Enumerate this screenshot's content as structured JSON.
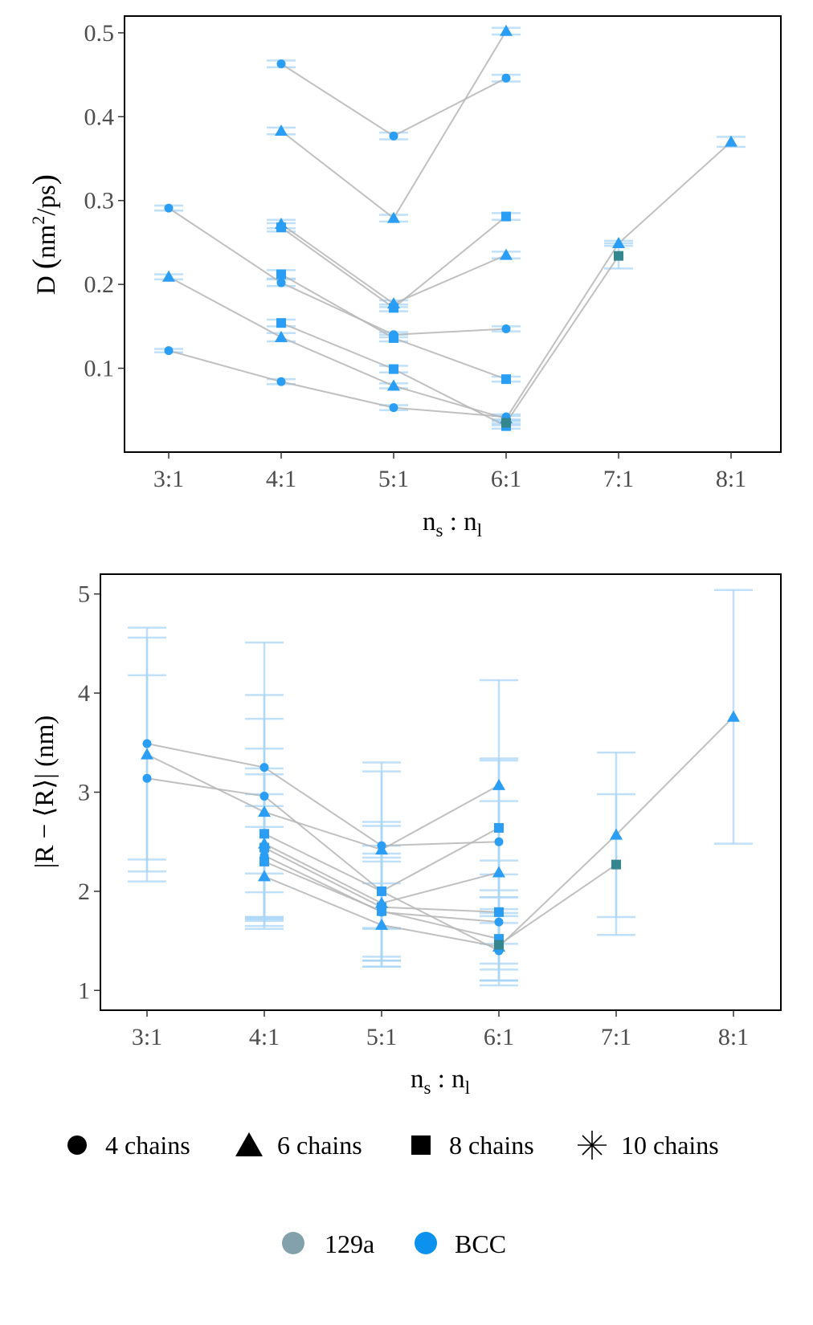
{
  "chart_data": [
    {
      "type": "line",
      "panel": "top",
      "xlabel_main": "n",
      "xlabel_sub1": "s",
      "xlabel_mid": " : n",
      "xlabel_sub2": "l",
      "ylabel_main": "D",
      "ylabel_paren_open": "(",
      "ylabel_unit_a": "nm",
      "ylabel_sup": "2",
      "ylabel_unit_b": "/ps",
      "ylabel_paren_close": ")",
      "categories": [
        "3:1",
        "4:1",
        "5:1",
        "6:1",
        "7:1",
        "8:1"
      ],
      "ylim": [
        0.0,
        0.52
      ],
      "yticks": [
        0.1,
        0.2,
        0.3,
        0.4,
        0.5
      ],
      "ytick_labels": [
        "0.1",
        "0.2",
        "0.3",
        "0.4",
        "0.5"
      ],
      "grid": false,
      "series": [
        {
          "name": "4 chains BCC a",
          "shape": "circle",
          "group": "BCC",
          "x": [
            "4:1",
            "5:1",
            "6:1"
          ],
          "values": [
            0.463,
            0.377,
            0.446
          ],
          "err": [
            0.004,
            0.004,
            0.004
          ]
        },
        {
          "name": "6 chains BCC a",
          "shape": "triangle",
          "group": "BCC",
          "x": [
            "4:1",
            "5:1",
            "6:1"
          ],
          "values": [
            0.383,
            0.279,
            0.502
          ],
          "err": [
            0.004,
            0.004,
            0.004
          ]
        },
        {
          "name": "8 chains BCC a",
          "shape": "square",
          "group": "BCC",
          "x": [
            "4:1",
            "5:1",
            "6:1"
          ],
          "values": [
            0.268,
            0.172,
            0.281
          ],
          "err": [
            0.005,
            0.004,
            0.004
          ]
        },
        {
          "name": "6 chains BCC b",
          "shape": "triangle",
          "group": "BCC",
          "x": [
            "4:1",
            "5:1",
            "6:1"
          ],
          "values": [
            0.272,
            0.177,
            0.235
          ],
          "err": [
            0.005,
            0.004,
            0.004
          ]
        },
        {
          "name": "4 chains BCC b",
          "shape": "circle",
          "group": "BCC",
          "x": [
            "3:1",
            "4:1",
            "5:1",
            "6:1"
          ],
          "values": [
            0.291,
            0.202,
            0.14,
            0.147
          ],
          "err": [
            0.003,
            0.004,
            0.003,
            0.003
          ]
        },
        {
          "name": "8 chains BCC b",
          "shape": "square",
          "group": "BCC",
          "x": [
            "4:1",
            "5:1",
            "6:1"
          ],
          "values": [
            0.212,
            0.136,
            0.087
          ],
          "err": [
            0.005,
            0.004,
            0.003
          ]
        },
        {
          "name": "6 chains BCC c",
          "shape": "triangle",
          "group": "BCC",
          "x": [
            "3:1",
            "4:1",
            "5:1",
            "6:1",
            "7:1",
            "8:1"
          ],
          "values": [
            0.209,
            0.137,
            0.079,
            0.04,
            0.249,
            0.37
          ],
          "err": [
            0.003,
            0.005,
            0.003,
            0.003,
            0.003,
            0.006
          ]
        },
        {
          "name": "8 chains BCC c",
          "shape": "square",
          "group": "BCC",
          "x": [
            "4:1",
            "5:1",
            "6:1"
          ],
          "values": [
            0.154,
            0.099,
            0.031
          ],
          "err": [
            0.004,
            0.004,
            0.003
          ]
        },
        {
          "name": "4 chains BCC c",
          "shape": "circle",
          "group": "BCC",
          "x": [
            "3:1",
            "4:1",
            "5:1",
            "6:1"
          ],
          "values": [
            0.121,
            0.084,
            0.053,
            0.042
          ],
          "err": [
            0.002,
            0.003,
            0.003,
            0.003
          ]
        },
        {
          "name": "8 chains 129a",
          "shape": "square",
          "group": "129a",
          "x": [
            "6:1",
            "7:1"
          ],
          "values": [
            0.035,
            0.234
          ],
          "err": [
            0.003,
            0.015
          ]
        }
      ]
    },
    {
      "type": "line",
      "panel": "bottom",
      "xlabel_main": "n",
      "xlabel_sub1": "s",
      "xlabel_mid": " : n",
      "xlabel_sub2": "l",
      "ylabel": "|R − ⟨R⟩| (nm)",
      "categories": [
        "3:1",
        "4:1",
        "5:1",
        "6:1",
        "7:1",
        "8:1"
      ],
      "ylim": [
        0.8,
        5.2
      ],
      "yticks": [
        1,
        2,
        3,
        4,
        5
      ],
      "ytick_labels": [
        "1",
        "2",
        "3",
        "4",
        "5"
      ],
      "grid": false,
      "series": [
        {
          "name": "4 chains a",
          "shape": "circle",
          "group": "BCC",
          "x": [
            "3:1",
            "4:1",
            "5:1",
            "6:1"
          ],
          "values": [
            3.49,
            3.25,
            2.46,
            2.5
          ],
          "err": [
            1.17,
            1.26,
            0.84,
            0.82
          ]
        },
        {
          "name": "6 chains a",
          "shape": "triangle",
          "group": "BCC",
          "x": [
            "3:1",
            "4:1",
            "5:1",
            "6:1"
          ],
          "values": [
            3.38,
            2.8,
            2.42,
            3.07
          ],
          "err": [
            1.18,
            1.18,
            0.79,
            1.06
          ]
        },
        {
          "name": "4 chains b",
          "shape": "circle",
          "group": "BCC",
          "x": [
            "3:1",
            "4:1",
            "5:1",
            "6:1"
          ],
          "values": [
            3.14,
            2.96,
            2.0,
            1.4
          ],
          "err": [
            1.04,
            0.78,
            0.7,
            0.35
          ]
        },
        {
          "name": "8 chains a",
          "shape": "square",
          "group": "BCC",
          "x": [
            "4:1",
            "5:1",
            "6:1"
          ],
          "values": [
            2.58,
            2.0,
            2.64
          ],
          "err": [
            0.86,
            0.66,
            0.7
          ]
        },
        {
          "name": "6 chains b",
          "shape": "triangle",
          "group": "BCC",
          "x": [
            "4:1",
            "5:1",
            "6:1"
          ],
          "values": [
            2.48,
            1.88,
            2.19
          ],
          "err": [
            0.76,
            0.58,
            0.72
          ]
        },
        {
          "name": "8 chains b",
          "shape": "square",
          "group": "BCC",
          "x": [
            "4:1",
            "5:1",
            "6:1"
          ],
          "values": [
            2.44,
            1.84,
            1.79
          ],
          "err": [
            0.74,
            0.54,
            0.52
          ]
        },
        {
          "name": "4 chains c",
          "shape": "circle",
          "group": "BCC",
          "x": [
            "4:1",
            "5:1",
            "6:1"
          ],
          "values": [
            2.36,
            1.79,
            1.69
          ],
          "err": [
            0.62,
            0.55,
            0.48
          ]
        },
        {
          "name": "8 chains c",
          "shape": "square",
          "group": "BCC",
          "x": [
            "4:1",
            "5:1",
            "6:1"
          ],
          "values": [
            2.3,
            1.8,
            1.52
          ],
          "err": [
            0.56,
            0.5,
            0.42
          ]
        },
        {
          "name": "6 chains c",
          "shape": "triangle",
          "group": "BCC",
          "x": [
            "4:1",
            "5:1",
            "6:1",
            "7:1",
            "8:1"
          ],
          "values": [
            2.15,
            1.66,
            1.44,
            2.57,
            3.76
          ],
          "err": [
            0.5,
            0.42,
            0.34,
            0.83,
            1.28
          ]
        },
        {
          "name": "8 chains 129a",
          "shape": "square",
          "group": "129a",
          "x": [
            "6:1",
            "7:1"
          ],
          "values": [
            1.46,
            2.27
          ],
          "err": [
            0.36,
            0.71
          ]
        }
      ]
    }
  ],
  "legend": {
    "shapes": [
      {
        "shape": "circle",
        "label": "4 chains"
      },
      {
        "shape": "triangle",
        "label": "6 chains"
      },
      {
        "shape": "square",
        "label": "8 chains"
      },
      {
        "shape": "asterisk",
        "label": "10 chains"
      }
    ],
    "groups": [
      {
        "label": "129a",
        "color": "#83a1ac"
      },
      {
        "label": "BCC",
        "color": "#0d91ee"
      }
    ]
  },
  "colors": {
    "BCC": "#2a9df4",
    "129a": "#34868f",
    "line": "#b5b5b5",
    "errorbar": "#a9d6f5",
    "axis": "#000000",
    "tick_text": "#4d4d4d"
  }
}
